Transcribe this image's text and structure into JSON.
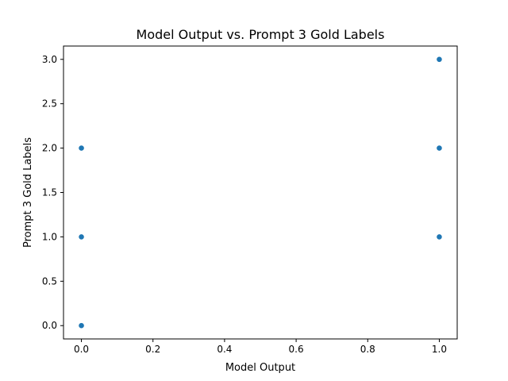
{
  "chart_data": {
    "type": "scatter",
    "title": "Model Output vs. Prompt 3 Gold Labels",
    "xlabel": "Model Output",
    "ylabel": "Prompt 3 Gold Labels",
    "xlim": [
      -0.05,
      1.05
    ],
    "ylim": [
      -0.15,
      3.15
    ],
    "xticks": [
      0.0,
      0.2,
      0.4,
      0.6,
      0.8,
      1.0
    ],
    "xtick_labels": [
      "0.0",
      "0.2",
      "0.4",
      "0.6",
      "0.8",
      "1.0"
    ],
    "yticks": [
      0.0,
      0.5,
      1.0,
      1.5,
      2.0,
      2.5,
      3.0
    ],
    "ytick_labels": [
      "0.0",
      "0.5",
      "1.0",
      "1.5",
      "2.0",
      "2.5",
      "3.0"
    ],
    "grid": false,
    "marker_color": "#1f77b4",
    "points": [
      {
        "x": 0,
        "y": 0
      },
      {
        "x": 0,
        "y": 1
      },
      {
        "x": 0,
        "y": 2
      },
      {
        "x": 1,
        "y": 1
      },
      {
        "x": 1,
        "y": 2
      },
      {
        "x": 1,
        "y": 3
      }
    ]
  }
}
